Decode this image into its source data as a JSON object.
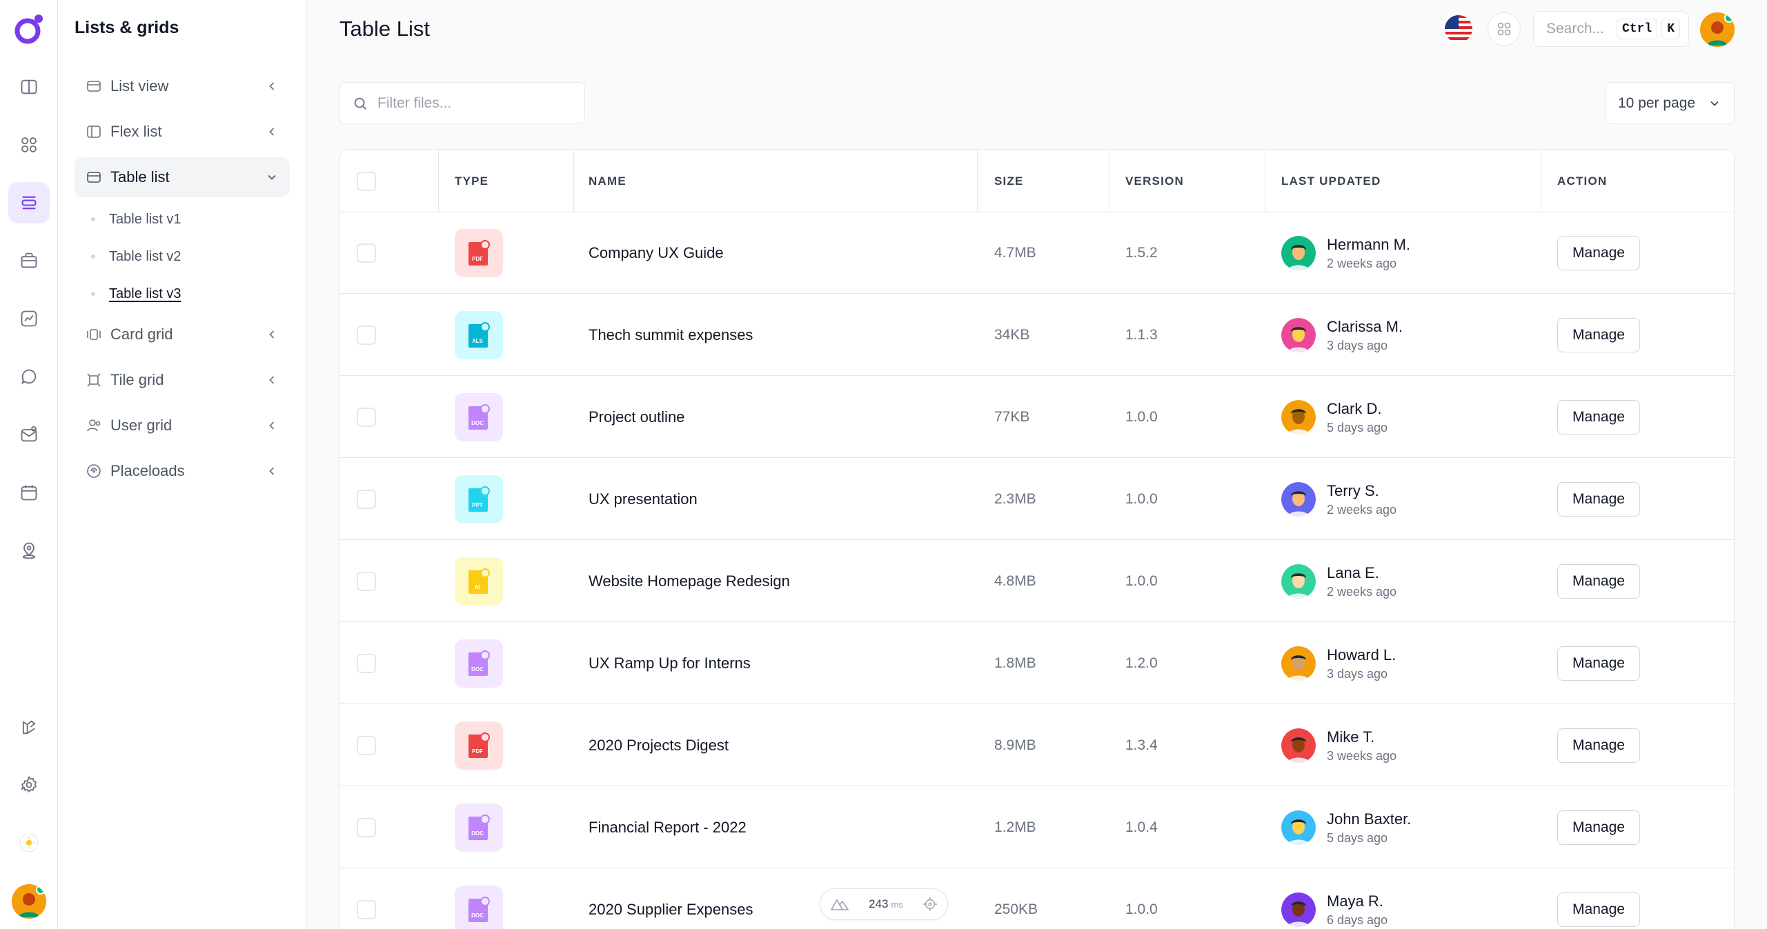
{
  "app": {
    "title": "Table List",
    "colors": {
      "accent": "#7c3aed",
      "accent_soft": "#ede9fe",
      "online": "#10b981"
    }
  },
  "rail": {
    "icons": [
      "logo-icon",
      "sidebar-panel-icon",
      "grid-icon",
      "list-icon",
      "briefcase-icon",
      "chart-icon",
      "chat-icon",
      "mail-icon",
      "calendar-icon",
      "map-pin-icon",
      "layers-icon",
      "gear-icon",
      "sun-icon"
    ]
  },
  "subnav": {
    "title": "Lists & grids",
    "items": [
      {
        "label": "List view",
        "icon": "list-view-icon"
      },
      {
        "label": "Flex list",
        "icon": "flex-list-icon"
      },
      {
        "label": "Table list",
        "icon": "table-list-icon",
        "open": true,
        "children": [
          "Table list v1",
          "Table list v2",
          "Table list v3"
        ],
        "current": "Table list v3"
      },
      {
        "label": "Card grid",
        "icon": "card-grid-icon"
      },
      {
        "label": "Tile grid",
        "icon": "tile-grid-icon"
      },
      {
        "label": "User grid",
        "icon": "user-grid-icon"
      },
      {
        "label": "Placeloads",
        "icon": "placeload-icon"
      }
    ]
  },
  "header": {
    "search_placeholder": "Search...",
    "kbd1": "Ctrl",
    "kbd2": "K"
  },
  "toolbar": {
    "filter_placeholder": "Filter files...",
    "per_page": "10 per page"
  },
  "table": {
    "columns": [
      "TYPE",
      "NAME",
      "SIZE",
      "VERSION",
      "LAST UPDATED",
      "ACTION"
    ],
    "action_label": "Manage",
    "rows": [
      {
        "type": "PDF",
        "name": "Company UX Guide",
        "size": "4.7MB",
        "version": "1.5.2",
        "user": "Hermann M.",
        "time": "2 weeks ago"
      },
      {
        "type": "XLS",
        "name": "Thech summit expenses",
        "size": "34KB",
        "version": "1.1.3",
        "user": "Clarissa M.",
        "time": "3 days ago"
      },
      {
        "type": "DOC",
        "name": "Project outline",
        "size": "77KB",
        "version": "1.0.0",
        "user": "Clark D.",
        "time": "5 days ago"
      },
      {
        "type": "PPT",
        "name": "UX presentation",
        "size": "2.3MB",
        "version": "1.0.0",
        "user": "Terry S.",
        "time": "2 weeks ago"
      },
      {
        "type": "AI",
        "name": "Website Homepage Redesign",
        "size": "4.8MB",
        "version": "1.0.0",
        "user": "Lana E.",
        "time": "2 weeks ago"
      },
      {
        "type": "DOC",
        "name": "UX Ramp Up for Interns",
        "size": "1.8MB",
        "version": "1.2.0",
        "user": "Howard L.",
        "time": "3 days ago"
      },
      {
        "type": "PDF",
        "name": "2020 Projects Digest",
        "size": "8.9MB",
        "version": "1.3.4",
        "user": "Mike T.",
        "time": "3 weeks ago"
      },
      {
        "type": "DOC",
        "name": "Financial Report - 2022",
        "size": "1.2MB",
        "version": "1.0.4",
        "user": "John Baxter.",
        "time": "5 days ago"
      },
      {
        "type": "DOC",
        "name": "2020 Supplier Expenses",
        "size": "250KB",
        "version": "1.0.0",
        "user": "Maya R.",
        "time": "6 days ago"
      }
    ]
  },
  "perf": {
    "value": "243",
    "unit": "ms"
  }
}
